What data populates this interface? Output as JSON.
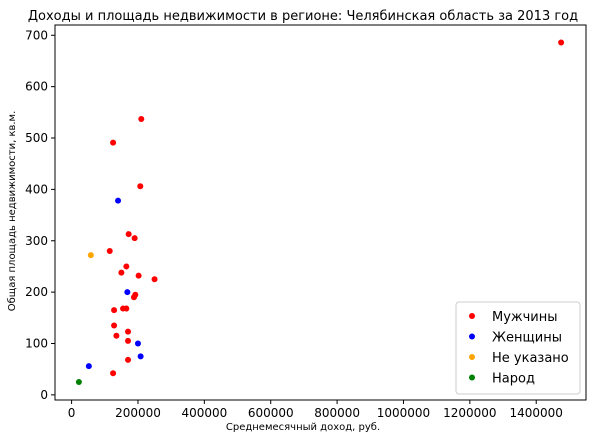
{
  "chart_data": {
    "type": "scatter",
    "title": "Доходы и площадь недвижимости в регионе: Челябинская область за 2013 год",
    "xlabel": "Среднемесячный доход, руб.",
    "ylabel": "Общая площадь недвижимости, кв.м.",
    "xlim": [
      -50000,
      1550000
    ],
    "ylim": [
      -10,
      720
    ],
    "xticks": [
      0,
      200000,
      400000,
      600000,
      800000,
      1000000,
      1200000,
      1400000
    ],
    "yticks": [
      0,
      100,
      200,
      300,
      400,
      500,
      600,
      700
    ],
    "grid": false,
    "legend_position": "bottom-right",
    "series": [
      {
        "name": "Мужчины",
        "color": "#ff0000",
        "points": [
          [
            1475000,
            686
          ],
          [
            210000,
            537
          ],
          [
            125000,
            491
          ],
          [
            207000,
            406
          ],
          [
            172000,
            313
          ],
          [
            190000,
            305
          ],
          [
            115000,
            280
          ],
          [
            165000,
            250
          ],
          [
            150000,
            238
          ],
          [
            202000,
            232
          ],
          [
            250000,
            225
          ],
          [
            192000,
            195
          ],
          [
            188000,
            190
          ],
          [
            155000,
            168
          ],
          [
            165000,
            168
          ],
          [
            128000,
            165
          ],
          [
            128000,
            135
          ],
          [
            170000,
            123
          ],
          [
            135000,
            115
          ],
          [
            170000,
            105
          ],
          [
            170000,
            68
          ],
          [
            125000,
            42
          ]
        ]
      },
      {
        "name": "Женщины",
        "color": "#0000ff",
        "points": [
          [
            140000,
            378
          ],
          [
            168000,
            200
          ],
          [
            200000,
            100
          ],
          [
            208000,
            75
          ],
          [
            52000,
            56
          ]
        ]
      },
      {
        "name": "Не указано",
        "color": "#ffa500",
        "points": [
          [
            58000,
            272
          ]
        ]
      },
      {
        "name": "Народ",
        "color": "#008000",
        "points": [
          [
            22000,
            25
          ]
        ]
      }
    ]
  }
}
